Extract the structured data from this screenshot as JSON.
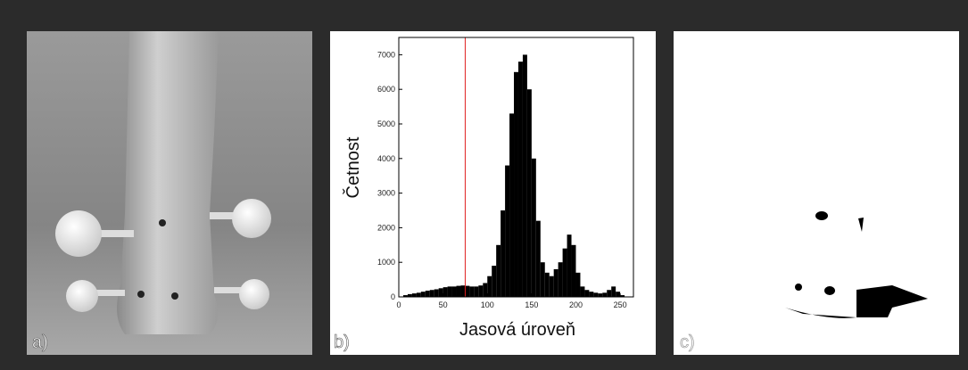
{
  "panel_labels": [
    "a)",
    "b)",
    "c)"
  ],
  "chart_data": {
    "type": "histogram",
    "xlabel": "Jasová úroveň",
    "ylabel": "Četnost",
    "bins": [
      0,
      5,
      10,
      15,
      20,
      25,
      30,
      35,
      40,
      45,
      50,
      55,
      60,
      65,
      70,
      75,
      80,
      85,
      90,
      95,
      100,
      105,
      110,
      115,
      120,
      125,
      130,
      135,
      140,
      145,
      150,
      155,
      160,
      165,
      170,
      175,
      180,
      185,
      190,
      195,
      200,
      205,
      210,
      215,
      220,
      225,
      230,
      235,
      240,
      245,
      250,
      255
    ],
    "values": [
      0,
      50,
      80,
      100,
      120,
      150,
      180,
      200,
      220,
      250,
      280,
      300,
      300,
      320,
      330,
      320,
      300,
      300,
      330,
      400,
      600,
      900,
      1500,
      2500,
      3800,
      5300,
      6500,
      6800,
      7000,
      6000,
      4000,
      2200,
      1000,
      700,
      600,
      800,
      1000,
      1400,
      1800,
      1500,
      700,
      300,
      200,
      150,
      120,
      100,
      120,
      200,
      300,
      150,
      50
    ],
    "color": "#000000",
    "threshold": 75,
    "threshold_color": "#e02020",
    "xlim": [
      0,
      265
    ],
    "xticks": [
      0,
      50,
      100,
      150,
      200,
      250
    ],
    "ylim": [
      0,
      7500
    ],
    "yticks": [
      0,
      1000,
      2000,
      3000,
      4000,
      5000,
      6000,
      7000
    ]
  }
}
